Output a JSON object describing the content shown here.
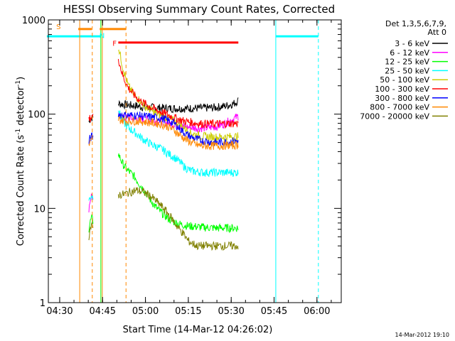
{
  "chart_data": {
    "type": "line",
    "title": "HESSI Observing Summary Count Rates, Corrected",
    "xlabel": "Start Time (14-Mar-12 04:26:02)",
    "ylabel": "Corrected Count Rate (s",
    "ylabel_sup1": "-1",
    "ylabel_mid": " detector",
    "ylabel_sup2": "-1",
    "ylabel_end": ")",
    "yscale": "log",
    "ylim": [
      1,
      1000
    ],
    "xlim_minutes": [
      26.03,
      128.5
    ],
    "x_ticks": [
      {
        "label": "04:30",
        "m": 30
      },
      {
        "label": "04:45",
        "m": 45
      },
      {
        "label": "05:00",
        "m": 60
      },
      {
        "label": "05:15",
        "m": 75
      },
      {
        "label": "05:30",
        "m": 90
      },
      {
        "label": "05:45",
        "m": 105
      },
      {
        "label": "06:00",
        "m": 120
      }
    ],
    "y_ticks": [
      {
        "label": "1",
        "v": 1
      },
      {
        "label": "10",
        "v": 10
      },
      {
        "label": "100",
        "v": 100
      },
      {
        "label": "1000",
        "v": 1000
      }
    ],
    "legend_header": [
      "Det 1,3,5,6,7,9,",
      "Att 0"
    ],
    "series": [
      {
        "name": "3 - 6 keV",
        "color": "#000000",
        "segments": [
          [
            [
              40.2,
              83
            ],
            [
              40.6,
              88
            ],
            [
              41.2,
              92
            ],
            [
              41.8,
              90
            ]
          ],
          [
            [
              50.5,
              130
            ],
            [
              52,
              127
            ],
            [
              54,
              125
            ],
            [
              57,
              122
            ],
            [
              60,
              118
            ],
            [
              63,
              117
            ],
            [
              66,
              116
            ],
            [
              70,
              115
            ],
            [
              75,
              115
            ],
            [
              80,
              116
            ],
            [
              85,
              118
            ],
            [
              88,
              122
            ],
            [
              91,
              130
            ],
            [
              92.5,
              140
            ]
          ]
        ]
      },
      {
        "name": "6 - 12 keV",
        "color": "#ff00ff",
        "segments": [
          [
            [
              40.2,
              10
            ],
            [
              40.6,
              12
            ],
            [
              41.2,
              14
            ],
            [
              41.8,
              12
            ]
          ],
          [
            [
              50.5,
              95
            ],
            [
              52,
              92
            ],
            [
              55,
              90
            ],
            [
              58,
              89
            ],
            [
              61,
              87
            ],
            [
              64,
              85
            ],
            [
              67,
              82
            ],
            [
              70,
              78
            ],
            [
              73,
              74
            ],
            [
              76,
              72
            ],
            [
              79,
              71
            ],
            [
              82,
              72
            ],
            [
              85,
              74
            ],
            [
              88,
              80
            ],
            [
              91,
              90
            ],
            [
              92.5,
              95
            ]
          ]
        ]
      },
      {
        "name": "12 - 25 keV",
        "color": "#00ff00",
        "segments": [
          [
            [
              40.2,
              6
            ],
            [
              40.6,
              7
            ],
            [
              41.2,
              8
            ],
            [
              41.8,
              7
            ]
          ],
          [
            [
              50.5,
              38
            ],
            [
              51,
              35
            ],
            [
              52,
              30
            ],
            [
              53,
              27
            ],
            [
              54,
              25
            ],
            [
              56,
              22
            ],
            [
              58,
              18
            ],
            [
              60,
              15
            ],
            [
              62,
              12
            ],
            [
              64,
              10
            ],
            [
              66,
              8.8
            ],
            [
              68,
              7.8
            ],
            [
              70,
              7.2
            ],
            [
              72,
              6.8
            ],
            [
              75,
              6.5
            ],
            [
              80,
              6.3
            ],
            [
              85,
              6.2
            ],
            [
              92.5,
              6.2
            ]
          ]
        ]
      },
      {
        "name": "25 - 50 keV",
        "color": "#00ffff",
        "segments": [
          [
            [
              25.5,
              670
            ],
            [
              44.5,
              670
            ]
          ],
          [
            [
              105.6,
              670
            ],
            [
              120.5,
              670
            ]
          ],
          [
            [
              40.2,
              12
            ],
            [
              40.6,
              13
            ],
            [
              41.2,
              14
            ],
            [
              41.8,
              13
            ]
          ],
          [
            [
              50.5,
              120
            ],
            [
              51,
              100
            ],
            [
              52,
              85
            ],
            [
              53,
              78
            ],
            [
              54,
              72
            ],
            [
              56,
              65
            ],
            [
              58,
              58
            ],
            [
              60,
              52
            ],
            [
              62,
              48
            ],
            [
              64,
              45
            ],
            [
              66,
              42
            ],
            [
              68,
              38
            ],
            [
              70,
              35
            ],
            [
              72,
              31
            ],
            [
              74,
              27
            ],
            [
              76,
              25
            ],
            [
              80,
              24
            ],
            [
              85,
              24
            ],
            [
              92.5,
              24
            ]
          ]
        ]
      },
      {
        "name": "50 - 100 keV",
        "color": "#cccc00",
        "segments": [
          [
            [
              50.5,
              520
            ],
            [
              51,
              450
            ],
            [
              52,
              320
            ],
            [
              53,
              250
            ],
            [
              54,
              200
            ],
            [
              56,
              160
            ],
            [
              58,
              140
            ],
            [
              60,
              120
            ],
            [
              62,
              110
            ],
            [
              64,
              100
            ],
            [
              66,
              96
            ],
            [
              68,
              90
            ],
            [
              70,
              85
            ],
            [
              72,
              78
            ],
            [
              74,
              70
            ],
            [
              76,
              63
            ],
            [
              78,
              60
            ],
            [
              80,
              58
            ],
            [
              85,
              57
            ],
            [
              92.5,
              58
            ]
          ]
        ]
      },
      {
        "name": "100 - 300 keV",
        "color": "#ff0000",
        "segments": [
          [
            [
              40.2,
              85
            ],
            [
              40.6,
              90
            ],
            [
              41.2,
              95
            ],
            [
              41.8,
              92
            ]
          ],
          [
            [
              50.5,
              400
            ],
            [
              51,
              340
            ],
            [
              52,
              260
            ],
            [
              53,
              220
            ],
            [
              54,
              190
            ],
            [
              56,
              160
            ],
            [
              58,
              140
            ],
            [
              60,
              128
            ],
            [
              62,
              118
            ],
            [
              64,
              110
            ],
            [
              66,
              104
            ],
            [
              68,
              98
            ],
            [
              70,
              92
            ],
            [
              72,
              87
            ],
            [
              74,
              84
            ],
            [
              76,
              82
            ],
            [
              78,
              80
            ],
            [
              80,
              79
            ],
            [
              85,
              79
            ],
            [
              92.5,
              80
            ]
          ]
        ]
      },
      {
        "name": "300 - 800 keV",
        "color": "#0000ff",
        "segments": [
          [
            [
              40.2,
              50
            ],
            [
              40.6,
              55
            ],
            [
              41.2,
              58
            ],
            [
              41.8,
              55
            ]
          ],
          [
            [
              50.5,
              100
            ],
            [
              52,
              98
            ],
            [
              55,
              97
            ],
            [
              58,
              96
            ],
            [
              61,
              94
            ],
            [
              64,
              92
            ],
            [
              67,
              88
            ],
            [
              70,
              80
            ],
            [
              72,
              70
            ],
            [
              74,
              62
            ],
            [
              76,
              57
            ],
            [
              78,
              54
            ],
            [
              80,
              52
            ],
            [
              85,
              50
            ],
            [
              92.5,
              52
            ]
          ]
        ]
      },
      {
        "name": "800 - 7000 keV",
        "color": "#ff8800",
        "segments": [
          [
            [
              40.2,
              45
            ],
            [
              40.6,
              50
            ],
            [
              41.2,
              52
            ],
            [
              41.8,
              50
            ]
          ],
          [
            [
              50.5,
              88
            ],
            [
              52,
              86
            ],
            [
              55,
              85
            ],
            [
              58,
              84
            ],
            [
              61,
              82
            ],
            [
              64,
              80
            ],
            [
              67,
              76
            ],
            [
              70,
              68
            ],
            [
              72,
              60
            ],
            [
              74,
              54
            ],
            [
              76,
              50
            ],
            [
              78,
              47
            ],
            [
              80,
              46
            ],
            [
              85,
              46
            ],
            [
              92.5,
              47
            ]
          ]
        ]
      },
      {
        "name": "7000 - 20000 keV",
        "color": "#808000",
        "segments": [
          [
            [
              40.2,
              5
            ],
            [
              40.6,
              6
            ],
            [
              41.2,
              6.5
            ],
            [
              41.8,
              6
            ]
          ],
          [
            [
              50.5,
              14
            ],
            [
              52,
              14
            ],
            [
              55,
              15
            ],
            [
              57,
              15.5
            ],
            [
              59,
              15
            ],
            [
              61,
              14
            ],
            [
              63,
              12.5
            ],
            [
              65,
              11
            ],
            [
              67,
              9.5
            ],
            [
              69,
              8
            ],
            [
              71,
              6.5
            ],
            [
              73,
              5.5
            ],
            [
              75,
              4.5
            ],
            [
              78,
              4
            ],
            [
              80,
              4
            ],
            [
              85,
              4
            ],
            [
              92.5,
              4
            ]
          ]
        ]
      }
    ],
    "annotations": [
      {
        "label": "S",
        "color": "#ff8800",
        "m": 29.6,
        "v": 800
      },
      {
        "label": "N",
        "color": "#00ffff",
        "m": 44.8,
        "v": 640
      },
      {
        "label": "F",
        "color": "#ff0000",
        "m": 49.2,
        "v": 530
      }
    ],
    "orange_bars": [
      [
        36.5,
        41.2
      ],
      [
        44.0,
        53.2
      ]
    ],
    "red_bar": [
      50.5,
      92.5,
      575
    ],
    "vlines": [
      {
        "m": 37.0,
        "color": "#ff8800",
        "dash": false
      },
      {
        "m": 41.4,
        "color": "#ff8800",
        "dash": true
      },
      {
        "m": 44.4,
        "color": "#00ff00",
        "dash": false
      },
      {
        "m": 44.9,
        "color": "#ff8800",
        "dash": false
      },
      {
        "m": 53.2,
        "color": "#ff8800",
        "dash": true
      },
      {
        "m": 105.6,
        "color": "#00ffff",
        "dash": false
      },
      {
        "m": 120.5,
        "color": "#00ffff",
        "dash": true
      }
    ]
  },
  "timestamp": "14-Mar-2012 19:10"
}
